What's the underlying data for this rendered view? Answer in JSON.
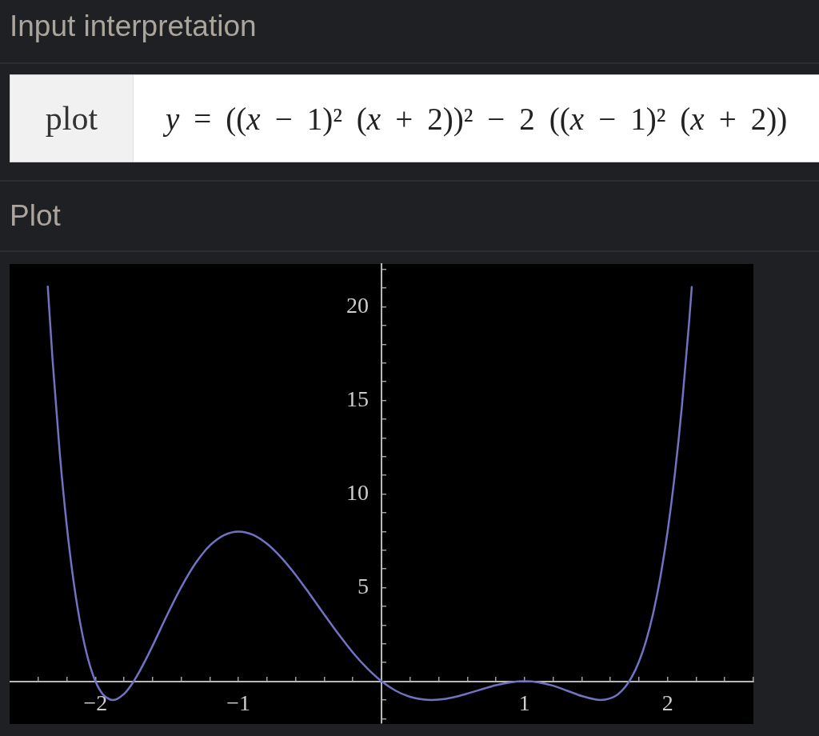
{
  "chart_data": {
    "type": "line",
    "title": "Plot",
    "annotations": [
      "Input interpretation",
      "plot",
      "y = ((x − 1)² (x + 2))² − 2 ((x − 1)² (x + 2))"
    ],
    "x": [
      -2.333,
      -2.3,
      -2.25,
      -2.2,
      -2.15,
      -2.1,
      -2.05,
      -2,
      -1.95,
      -1.9,
      -1.88,
      -1.85,
      -1.8,
      -1.75,
      -1.7,
      -1.65,
      -1.6,
      -1.5,
      -1.4,
      -1.3,
      -1.2,
      -1.1,
      -1,
      -0.9,
      -0.8,
      -0.7,
      -0.6,
      -0.5,
      -0.4,
      -0.3,
      -0.2,
      -0.1,
      0,
      0.1,
      0.2,
      0.3,
      0.35,
      0.4,
      0.5,
      0.6,
      0.7,
      0.8,
      0.9,
      1,
      1.1,
      1.2,
      1.3,
      1.4,
      1.5,
      1.53,
      1.6,
      1.65,
      1.7,
      1.75,
      1.8,
      1.85,
      1.9,
      1.95,
      2,
      2.05,
      2.1,
      2.15,
      2.169
    ],
    "values": [
      21.08,
      17.21,
      12.25,
      8.29,
      5.19,
      2.85,
      1.15,
      0,
      -0.68,
      -0.97,
      -1,
      -0.95,
      -0.68,
      -0.21,
      0.41,
      1.13,
      1.9,
      3.52,
      5.03,
      6.31,
      7.25,
      7.81,
      8,
      7.83,
      7.34,
      6.6,
      5.68,
      4.64,
      3.56,
      2.51,
      1.53,
      0.69,
      0,
      -0.51,
      -0.83,
      -0.98,
      -1,
      -0.98,
      -0.86,
      -0.66,
      -0.43,
      -0.21,
      -0.06,
      0,
      -0.06,
      -0.24,
      -0.51,
      -0.79,
      -0.98,
      -1,
      -0.91,
      -0.71,
      -0.34,
      0.23,
      1.05,
      2.17,
      3.66,
      5.58,
      8,
      11.01,
      14.69,
      19.15,
      21.06
    ],
    "color": "#7272c2",
    "line_style": "solid",
    "xlim": [
      -2.6,
      2.6
    ],
    "xticks": [
      {
        "value": -2.4,
        "label": null
      },
      {
        "value": -2.2,
        "label": null
      },
      {
        "value": -2,
        "label": "−2"
      },
      {
        "value": -1.8,
        "label": null
      },
      {
        "value": -1.6,
        "label": null
      },
      {
        "value": -1.4,
        "label": null
      },
      {
        "value": -1.2,
        "label": null
      },
      {
        "value": -1,
        "label": "−1"
      },
      {
        "value": -0.8,
        "label": null
      },
      {
        "value": -0.6,
        "label": null
      },
      {
        "value": -0.4,
        "label": null
      },
      {
        "value": -0.2,
        "label": null
      },
      {
        "value": 0.2,
        "label": null
      },
      {
        "value": 0.4,
        "label": null
      },
      {
        "value": 0.6,
        "label": null
      },
      {
        "value": 0.8,
        "label": null
      },
      1,
      {
        "value": 1.2,
        "label": null
      },
      {
        "value": 1.4,
        "label": null
      },
      {
        "value": 1.6,
        "label": null
      },
      {
        "value": 1.8,
        "label": null
      },
      2,
      {
        "value": 2.2,
        "label": null
      },
      {
        "value": 2.4,
        "label": null
      },
      {
        "value": 2.6,
        "label": null
      }
    ],
    "ylim": [
      -2.25,
      22.3
    ],
    "yticks": [
      {
        "value": -2,
        "label": null
      },
      {
        "value": -1,
        "label": null
      },
      {
        "value": 1,
        "label": null
      },
      {
        "value": 2,
        "label": null
      },
      {
        "value": 3,
        "label": null
      },
      {
        "value": 4,
        "label": null
      },
      5,
      {
        "value": 6,
        "label": null
      },
      {
        "value": 7,
        "label": null
      },
      {
        "value": 8,
        "label": null
      },
      {
        "value": 9,
        "label": null
      },
      10,
      {
        "value": 11,
        "label": null
      },
      {
        "value": 12,
        "label": null
      },
      {
        "value": 13,
        "label": null
      },
      {
        "value": 14,
        "label": null
      },
      15,
      {
        "value": 16,
        "label": null
      },
      {
        "value": 17,
        "label": null
      },
      {
        "value": 18,
        "label": null
      },
      {
        "value": 19,
        "label": null
      },
      20,
      {
        "value": 21,
        "label": null
      },
      {
        "value": 22,
        "label": null
      }
    ]
  }
}
